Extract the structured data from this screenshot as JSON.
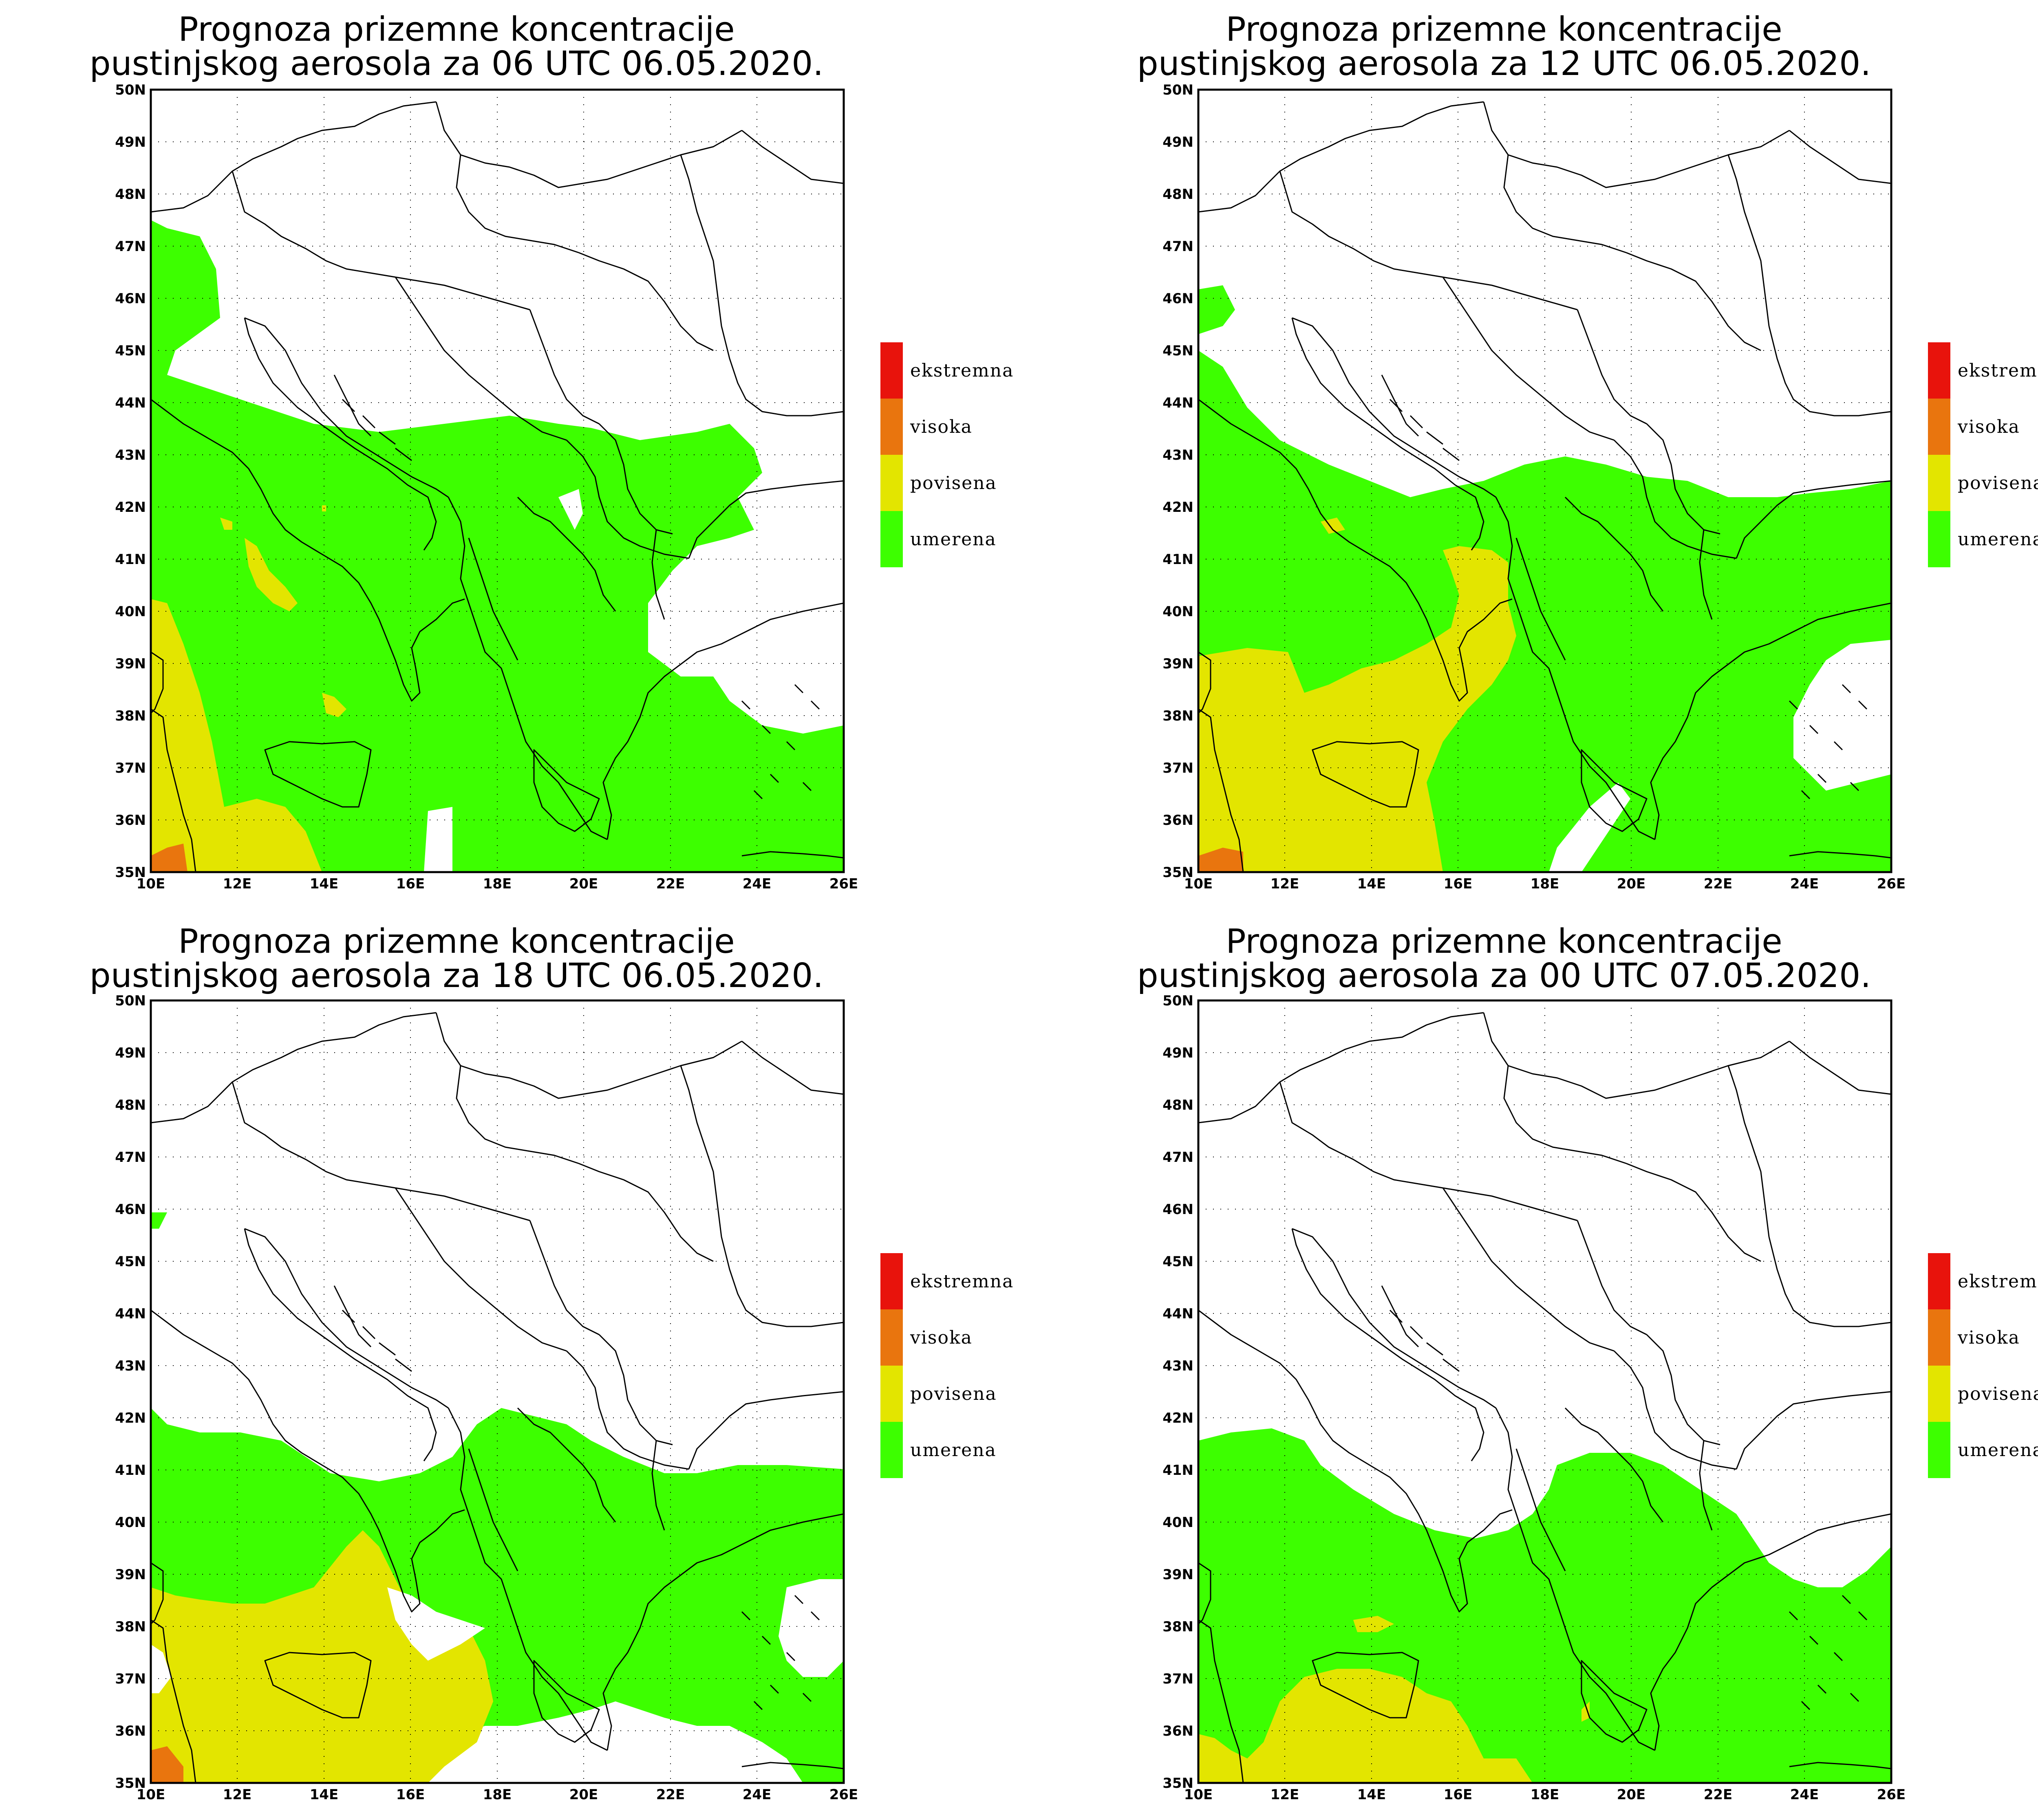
{
  "panels": [
    {
      "title_line1": "Prognoza prizemne koncentracije",
      "title_line2": "pustinjskog aerosola za 06 UTC 06.05.2020."
    },
    {
      "title_line1": "Prognoza prizemne koncentracije",
      "title_line2": "pustinjskog aerosola za 12 UTC 06.05.2020."
    },
    {
      "title_line1": "Prognoza prizemne koncentracije",
      "title_line2": "pustinjskog aerosola za 18 UTC 06.05.2020."
    },
    {
      "title_line1": "Prognoza prizemne koncentracije",
      "title_line2": "pustinjskog aerosola za 00 UTC 07.05.2020."
    }
  ],
  "lon_ticks": [
    "10E",
    "12E",
    "14E",
    "16E",
    "18E",
    "20E",
    "22E",
    "24E",
    "26E"
  ],
  "lat_ticks": [
    "50N",
    "49N",
    "48N",
    "47N",
    "46N",
    "45N",
    "44N",
    "43N",
    "42N",
    "41N",
    "40N",
    "39N",
    "38N",
    "37N",
    "36N",
    "35N"
  ],
  "legend": [
    {
      "label": "ekstremna",
      "color": "#e8130c"
    },
    {
      "label": "visoka",
      "color": "#e9750e"
    },
    {
      "label": "povisena",
      "color": "#e3e500"
    },
    {
      "label": "umerena",
      "color": "#3dff00"
    }
  ]
}
